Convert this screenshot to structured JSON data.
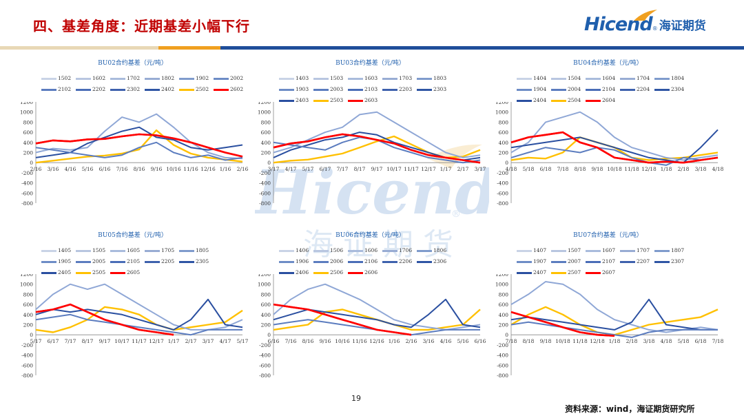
{
  "header": {
    "title": "四、基差角度：近期基差小幅下行",
    "logo_en": "Hicend",
    "logo_reg": "®",
    "logo_cn": "海证期货"
  },
  "colors": {
    "title": "#c00000",
    "brand_blue": "#1f5fad",
    "bar_beige": "#e8d8b6",
    "bar_orange": "#f0a020",
    "bar_blue": "#1f4e9a",
    "red": "#ff0000",
    "yellow": "#ffc000"
  },
  "footer": {
    "page_number": "19",
    "source": "资料来源：wind，海证期货研究所"
  },
  "watermark": {
    "text_en": "Hicend",
    "text_cn": "海证期货",
    "reg": "®"
  },
  "chart_data": [
    {
      "type": "line",
      "title": "BU02合约基差（元/吨）",
      "legend": [
        "1502",
        "1602",
        "1702",
        "1802",
        "1902",
        "2002",
        "2102",
        "2202",
        "2302",
        "2402",
        "2502",
        "2602"
      ],
      "xticks": [
        "2/16",
        "3/16",
        "4/16",
        "5/16",
        "6/16",
        "7/16",
        "8/16",
        "9/16",
        "10/16",
        "11/16",
        "12/16",
        "1/16",
        "2/16"
      ],
      "ylim": [
        -800,
        1200
      ],
      "yticks": [
        -800,
        -600,
        -400,
        -200,
        0,
        200,
        400,
        600,
        800,
        1000,
        1200
      ],
      "series": [
        {
          "name": "2602",
          "emphasis": "red",
          "values": [
            380,
            440,
            420,
            460,
            470,
            520,
            560,
            540,
            480,
            400,
            300,
            200,
            120
          ]
        },
        {
          "name": "2502",
          "emphasis": "yellow",
          "values": [
            0,
            40,
            80,
            120,
            140,
            180,
            260,
            640,
            350,
            180,
            100,
            60,
            20
          ]
        },
        {
          "name": "2402",
          "values": [
            200,
            280,
            250,
            300,
            620,
            900,
            800,
            960,
            700,
            400,
            200,
            100,
            80
          ]
        },
        {
          "name": "2302",
          "values": [
            100,
            150,
            200,
            380,
            500,
            620,
            700,
            500,
            450,
            300,
            250,
            300,
            350
          ]
        },
        {
          "name": "2202",
          "values": [
            300,
            250,
            200,
            150,
            100,
            150,
            300,
            400,
            200,
            100,
            150,
            50,
            100
          ]
        }
      ]
    },
    {
      "type": "line",
      "title": "BU03合约基差（元/吨）",
      "legend": [
        "1403",
        "1503",
        "1603",
        "1703",
        "1803",
        "1903",
        "2003",
        "2103",
        "2203",
        "2303",
        "2403",
        "2503",
        "2603"
      ],
      "xticks": [
        "3/17",
        "4/17",
        "5/17",
        "6/17",
        "7/17",
        "8/17",
        "9/17",
        "10/17",
        "11/17",
        "12/17",
        "1/17",
        "2/17",
        "3/17"
      ],
      "ylim": [
        -800,
        1200
      ],
      "yticks": [
        -800,
        -600,
        -400,
        -200,
        0,
        200,
        400,
        600,
        800,
        1000,
        1200
      ],
      "series": [
        {
          "name": "2603",
          "emphasis": "red",
          "values": [
            300,
            380,
            420,
            500,
            560,
            520,
            450,
            380,
            250,
            150,
            100,
            50,
            0
          ]
        },
        {
          "name": "2503",
          "emphasis": "yellow",
          "values": [
            0,
            40,
            60,
            120,
            180,
            300,
            420,
            520,
            360,
            200,
            100,
            120,
            250
          ]
        },
        {
          "name": "2403",
          "values": [
            200,
            300,
            450,
            600,
            700,
            950,
            1000,
            800,
            600,
            400,
            200,
            100,
            150
          ]
        },
        {
          "name": "2303",
          "values": [
            100,
            250,
            350,
            450,
            500,
            600,
            550,
            400,
            300,
            200,
            100,
            50,
            100
          ]
        },
        {
          "name": "2203",
          "values": [
            400,
            350,
            300,
            250,
            400,
            500,
            450,
            300,
            200,
            100,
            50,
            0,
            50
          ]
        }
      ]
    },
    {
      "type": "line",
      "title": "BU04合约基差（元/吨）",
      "legend": [
        "1404",
        "1504",
        "1604",
        "1704",
        "1804",
        "1904",
        "2004",
        "2104",
        "2204",
        "2304",
        "2404",
        "2504",
        "2604"
      ],
      "xticks": [
        "4/18",
        "5/18",
        "6/18",
        "7/18",
        "8/18",
        "9/18",
        "10/18",
        "11/18",
        "12/18",
        "1/18",
        "2/18",
        "3/18",
        "4/18"
      ],
      "ylim": [
        -800,
        1200
      ],
      "yticks": [
        -800,
        -600,
        -400,
        -200,
        0,
        200,
        400,
        600,
        800,
        1000,
        1200
      ],
      "series": [
        {
          "name": "2604",
          "emphasis": "red",
          "values": [
            400,
            500,
            550,
            600,
            400,
            300,
            100,
            50,
            0,
            20,
            0,
            50,
            100
          ]
        },
        {
          "name": "2504",
          "emphasis": "yellow",
          "values": [
            50,
            100,
            80,
            200,
            500,
            400,
            300,
            100,
            50,
            80,
            100,
            150,
            200
          ]
        },
        {
          "name": "2404",
          "values": [
            200,
            400,
            800,
            900,
            1000,
            800,
            500,
            300,
            200,
            100,
            50,
            100,
            150
          ]
        },
        {
          "name": "2304",
          "values": [
            300,
            350,
            400,
            450,
            500,
            400,
            300,
            200,
            100,
            50,
            0,
            300,
            650
          ]
        },
        {
          "name": "2204",
          "values": [
            100,
            200,
            300,
            250,
            200,
            300,
            250,
            100,
            0,
            -50,
            100,
            50,
            100
          ]
        }
      ]
    },
    {
      "type": "line",
      "title": "BU05合约基差（元/吨）",
      "legend": [
        "1405",
        "1505",
        "1605",
        "1705",
        "1805",
        "1905",
        "2005",
        "2105",
        "2205",
        "2305",
        "2405",
        "2505",
        "2605"
      ],
      "xticks": [
        "5/17",
        "6/17",
        "7/17",
        "8/17",
        "9/17",
        "10/17",
        "11/17",
        "12/17",
        "1/17",
        "2/17",
        "3/17",
        "4/17",
        "5/17"
      ],
      "ylim": [
        -800,
        1200
      ],
      "yticks": [
        -800,
        -600,
        -400,
        -200,
        0,
        200,
        400,
        600,
        800,
        1000,
        1200
      ],
      "series": [
        {
          "name": "2605",
          "emphasis": "red",
          "values": [
            450,
            500,
            600,
            450,
            300,
            200,
            100,
            50,
            0,
            null,
            null,
            null,
            null
          ]
        },
        {
          "name": "2505",
          "emphasis": "yellow",
          "values": [
            100,
            50,
            150,
            300,
            550,
            500,
            400,
            200,
            100,
            150,
            200,
            250,
            480
          ]
        },
        {
          "name": "2405",
          "values": [
            500,
            800,
            1000,
            900,
            1000,
            800,
            600,
            400,
            200,
            100,
            100,
            150,
            300
          ]
        },
        {
          "name": "2305",
          "values": [
            400,
            500,
            450,
            500,
            450,
            400,
            300,
            200,
            100,
            300,
            700,
            200,
            150
          ]
        },
        {
          "name": "2205",
          "values": [
            300,
            350,
            400,
            300,
            250,
            200,
            150,
            100,
            50,
            0,
            100,
            100,
            100
          ]
        }
      ]
    },
    {
      "type": "line",
      "title": "BU06合约基差（元/吨）",
      "legend": [
        "1406",
        "1506",
        "1606",
        "1706",
        "1806",
        "1906",
        "2006",
        "2106",
        "2206",
        "2306",
        "2406",
        "2506",
        "2606"
      ],
      "xticks": [
        "6/16",
        "7/16",
        "8/16",
        "9/16",
        "10/16",
        "11/16",
        "12/16",
        "1/16",
        "2/16",
        "3/16",
        "4/16",
        "5/16",
        "6/16"
      ],
      "ylim": [
        -800,
        1200
      ],
      "yticks": [
        -800,
        -600,
        -400,
        -200,
        0,
        200,
        400,
        600,
        800,
        1000,
        1200
      ],
      "series": [
        {
          "name": "2606",
          "emphasis": "red",
          "values": [
            600,
            550,
            500,
            400,
            300,
            200,
            100,
            50,
            0,
            null,
            null,
            null,
            null
          ]
        },
        {
          "name": "2506",
          "emphasis": "yellow",
          "values": [
            100,
            150,
            200,
            450,
            500,
            400,
            300,
            200,
            100,
            100,
            150,
            200,
            500
          ]
        },
        {
          "name": "2406",
          "values": [
            400,
            700,
            900,
            1000,
            850,
            700,
            500,
            300,
            200,
            150,
            100,
            150,
            200
          ]
        },
        {
          "name": "2306",
          "values": [
            300,
            400,
            500,
            450,
            400,
            350,
            300,
            200,
            150,
            400,
            700,
            200,
            150
          ]
        },
        {
          "name": "2206",
          "values": [
            200,
            250,
            300,
            250,
            200,
            150,
            100,
            50,
            0,
            50,
            100,
            100,
            100
          ]
        }
      ]
    },
    {
      "type": "line",
      "title": "BU07合约基差（元/吨）",
      "legend": [
        "1407",
        "1507",
        "1607",
        "1707",
        "1807",
        "1907",
        "2007",
        "2107",
        "2207",
        "2307",
        "2407",
        "2507",
        "2607"
      ],
      "xticks": [
        "7/18",
        "8/18",
        "9/18",
        "10/18",
        "11/18",
        "12/18",
        "1/18",
        "2/18",
        "3/18",
        "4/18",
        "5/18",
        "6/18",
        "7/18"
      ],
      "ylim": [
        -800,
        1200
      ],
      "yticks": [
        -800,
        -600,
        -400,
        -200,
        0,
        200,
        400,
        600,
        800,
        1000,
        1200
      ],
      "series": [
        {
          "name": "2607",
          "emphasis": "red",
          "values": [
            450,
            350,
            250,
            150,
            50,
            0,
            -20,
            null,
            null,
            null,
            null,
            null,
            null
          ]
        },
        {
          "name": "2507",
          "emphasis": "yellow",
          "values": [
            200,
            400,
            550,
            400,
            200,
            50,
            0,
            100,
            200,
            250,
            300,
            350,
            500
          ]
        },
        {
          "name": "2407",
          "values": [
            600,
            800,
            1050,
            1000,
            800,
            500,
            300,
            200,
            100,
            50,
            100,
            150,
            100
          ]
        },
        {
          "name": "2307",
          "values": [
            300,
            350,
            300,
            250,
            200,
            150,
            100,
            250,
            700,
            200,
            150,
            100,
            100
          ]
        },
        {
          "name": "2207",
          "values": [
            200,
            250,
            200,
            150,
            100,
            50,
            0,
            -50,
            50,
            100,
            100,
            100,
            100
          ]
        }
      ]
    }
  ]
}
